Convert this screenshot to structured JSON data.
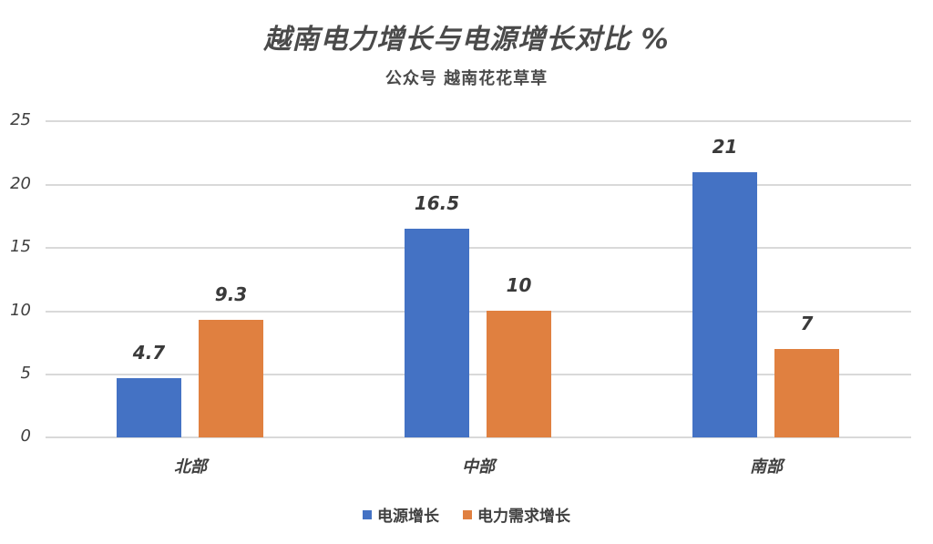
{
  "title": "越南电力增长与电源增长对比 %",
  "subtitle": "公众号 越南花花草草",
  "chart_data": {
    "type": "bar",
    "title": "越南电力增长与电源增长对比 %",
    "subtitle": "公众号 越南花花草草",
    "categories": [
      "北部",
      "中部",
      "南部"
    ],
    "series": [
      {
        "name": "电源增长",
        "color": "#4472c4",
        "values": [
          4.7,
          16.5,
          21
        ]
      },
      {
        "name": "电力需求增长",
        "color": "#e08040",
        "values": [
          9.3,
          10,
          7
        ]
      }
    ],
    "data_labels": [
      [
        "4.7",
        "16.5",
        "21"
      ],
      [
        "9.3",
        "10",
        "7"
      ]
    ],
    "xlabel": "",
    "ylabel": "",
    "ylim": [
      0,
      25
    ],
    "yticks": [
      "0",
      "5",
      "10",
      "15",
      "20",
      "25"
    ],
    "grid": true,
    "legend_position": "bottom"
  },
  "legend": [
    {
      "label": "电源增长",
      "color": "#4472c4"
    },
    {
      "label": "电力需求增长",
      "color": "#e08040"
    }
  ]
}
